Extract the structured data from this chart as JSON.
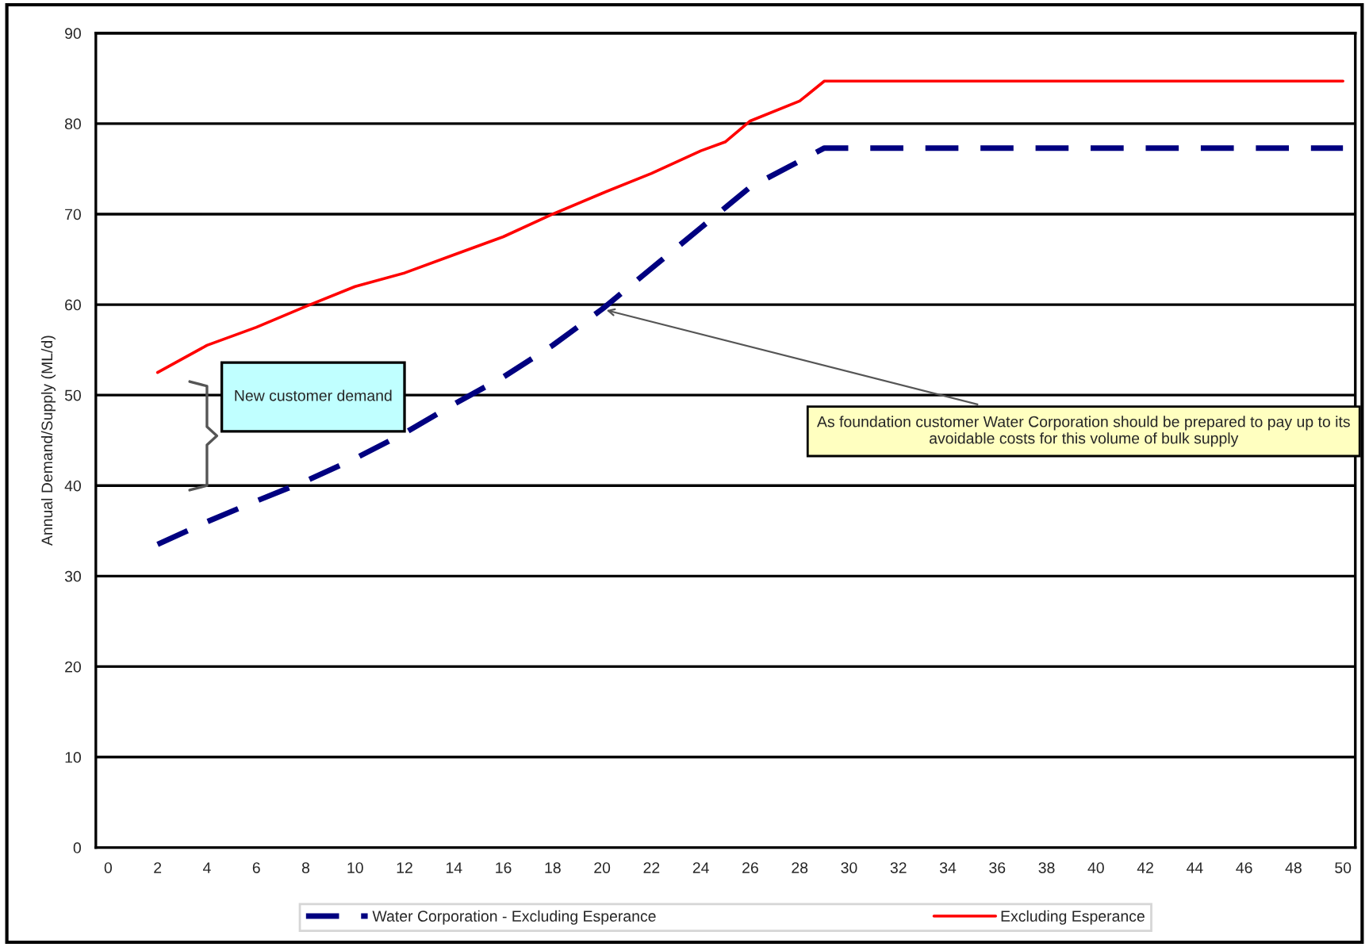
{
  "chart_data": {
    "type": "line",
    "ylabel": "Annual Demand/Supply (ML/d)",
    "xlim": [
      -0.5,
      50.5
    ],
    "xticks": [
      0,
      2,
      4,
      6,
      8,
      10,
      12,
      14,
      16,
      18,
      20,
      22,
      24,
      26,
      28,
      30,
      32,
      34,
      36,
      38,
      40,
      42,
      44,
      46,
      48,
      50
    ],
    "ylim": [
      0,
      90
    ],
    "yticks": [
      0,
      10,
      20,
      30,
      40,
      50,
      60,
      70,
      80,
      90
    ],
    "grid": "y",
    "legend": "bottom",
    "marker": "none",
    "series": [
      {
        "name": "Water Corporation - Excluding Esperance",
        "color": "#000080",
        "line_style": "dashed",
        "x": [
          2,
          4,
          6,
          8,
          10,
          12,
          14,
          16,
          18,
          20,
          22,
          24,
          26,
          29,
          50
        ],
        "values": [
          33.5,
          36,
          38.3,
          40.5,
          43,
          45.8,
          49,
          52,
          55.5,
          59.5,
          64,
          68.5,
          73,
          77.3,
          77.3
        ]
      },
      {
        "name": "Excluding Esperance",
        "color": "#ff0000",
        "line_style": "solid",
        "x": [
          2,
          4,
          6,
          8,
          10,
          12,
          14,
          16,
          18,
          20,
          22,
          24,
          25,
          26,
          28,
          29,
          50
        ],
        "values": [
          52.5,
          55.5,
          57.5,
          59.8,
          62,
          63.5,
          65.5,
          67.5,
          70,
          72.3,
          74.5,
          77,
          78,
          80.3,
          82.5,
          84.7,
          84.7
        ]
      }
    ],
    "annotations": [
      "New customer demand",
      {
        "text": "As foundation customer Water Corporation should be prepared to pay up to its avoidable costs for this volume of bulk supply",
        "x": 20,
        "y": 59.5
      }
    ]
  }
}
